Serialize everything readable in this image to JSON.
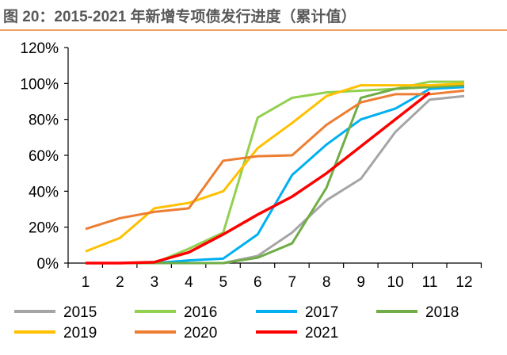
{
  "chart_data": {
    "type": "line",
    "title": "图 20：2015-2021 年新增专项债发行进度（累计值）",
    "xlabel": "",
    "ylabel": "",
    "categories": [
      "1",
      "2",
      "3",
      "4",
      "5",
      "6",
      "7",
      "8",
      "9",
      "10",
      "11",
      "12"
    ],
    "ylim": [
      0,
      120
    ],
    "yticks": [
      "0%",
      "20%",
      "40%",
      "60%",
      "80%",
      "100%",
      "120%"
    ],
    "grid": false,
    "legend": "bottom",
    "series": [
      {
        "name": "2015",
        "color": "#a5a5a5",
        "values": [
          0,
          0,
          0,
          0,
          0,
          4,
          17,
          35,
          47,
          73,
          91,
          93
        ]
      },
      {
        "name": "2016",
        "color": "#92d050",
        "values": [
          0,
          0,
          0,
          8,
          17,
          81,
          92,
          95,
          96,
          97,
          101,
          101
        ]
      },
      {
        "name": "2017",
        "color": "#00b0f0",
        "values": [
          0,
          0,
          0,
          1.5,
          2.5,
          16,
          49,
          66,
          80,
          86,
          97,
          98
        ]
      },
      {
        "name": "2018",
        "color": "#70ad47",
        "values": [
          0,
          0,
          0,
          0,
          0,
          3,
          11,
          42,
          92,
          97,
          98,
          99
        ]
      },
      {
        "name": "2019",
        "color": "#ffc000",
        "values": [
          6.5,
          14,
          30.5,
          33.5,
          40,
          64,
          78,
          93,
          99,
          99,
          99,
          100
        ]
      },
      {
        "name": "2020",
        "color": "#ed7d31",
        "values": [
          19,
          25,
          28.5,
          30.5,
          57,
          59.5,
          60,
          77,
          89.5,
          94,
          94,
          96
        ]
      },
      {
        "name": "2021",
        "color": "#ff0000",
        "values": [
          0,
          0,
          0.5,
          6,
          16,
          27,
          37,
          50,
          65,
          80,
          95,
          null
        ]
      }
    ]
  }
}
